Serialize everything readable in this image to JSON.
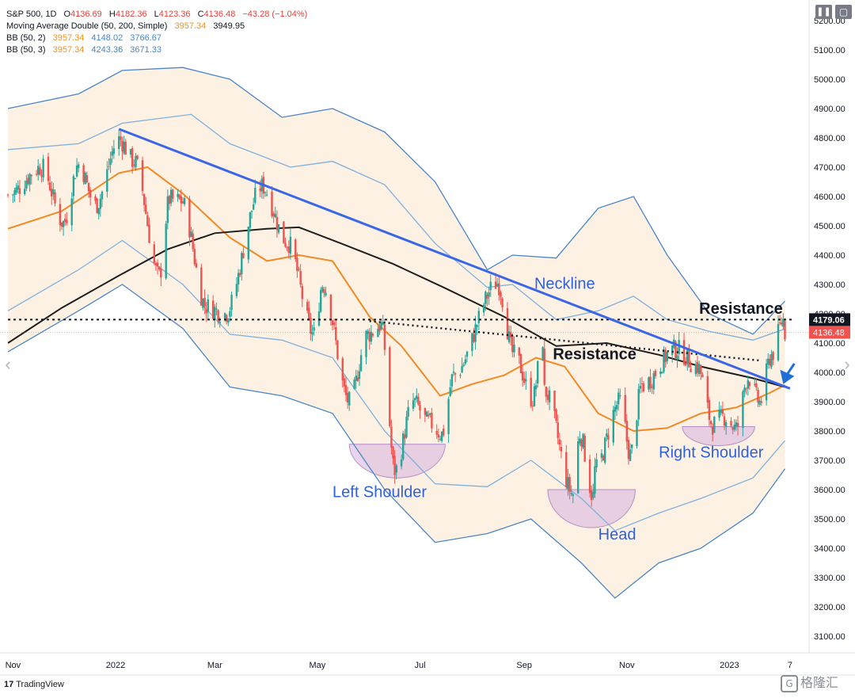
{
  "legend": {
    "ticker": "S&P 500, 1D",
    "o_label": "O",
    "o_value": "4136.69",
    "h_label": "H",
    "h_value": "4182.36",
    "l_label": "L",
    "l_value": "4123.36",
    "c_label": "C",
    "c_value": "4136.48",
    "change": "−43.28 (−1.04%)",
    "ma_label": "Moving Average Double (50, 200, Simple)",
    "ma_fast": "3957.34",
    "ma_slow": "3949.95",
    "bb1_label": "BB (50, 2)",
    "bb1_basis": "3957.34",
    "bb1_upper": "4148.02",
    "bb1_lower": "3766.67",
    "bb2_label": "BB (50, 3)",
    "bb2_basis": "3957.34",
    "bb2_upper": "4243.36",
    "bb2_lower": "3671.33"
  },
  "price_tags": {
    "resistance_tag": "4179.06",
    "last_price_tag": "4136.48"
  },
  "footer": {
    "brand": "TradingView",
    "watermark": "格隆汇"
  },
  "colors": {
    "up": "#26a69a",
    "down": "#ef5350",
    "ma50": "#f08a24",
    "ma200": "#1e1e1e",
    "bb_band": "#4a86c6",
    "band_fill": "#fdf0e0",
    "trend": "#3a66e8",
    "annotation_blue": "#2f62d8",
    "shoulder_fill": "#d9b7e0"
  },
  "chart_data": {
    "type": "candlestick",
    "y_axis": {
      "min": 3050,
      "max": 5220,
      "ticks": [
        3100,
        3200,
        3300,
        3400,
        3500,
        3600,
        3700,
        3800,
        3900,
        4000,
        4100,
        4200,
        4300,
        4400,
        4500,
        4600,
        4700,
        4800,
        4900,
        5000,
        5100,
        5200
      ],
      "tick_labels": [
        "3100.00",
        "3200.00",
        "3300.00",
        "3400.00",
        "3500.00",
        "3600.00",
        "3700.00",
        "3800.00",
        "3900.00",
        "4000.00",
        "4100.00",
        "4200.00",
        "4300.00",
        "4400.00",
        "4500.00",
        "4600.00",
        "4700.00",
        "4800.00",
        "4900.00",
        "5000.00",
        "5100.00",
        "5200.00"
      ]
    },
    "x_axis": {
      "start": "2021-10-29",
      "end": "2023-02-07",
      "ticks": [
        "2021-11-01",
        "2022-01-01",
        "2022-03-01",
        "2022-05-01",
        "2022-07-01",
        "2022-09-01",
        "2022-11-01",
        "2023-01-01",
        "2023-02-06"
      ],
      "tick_labels": [
        "Nov",
        "2022",
        "Mar",
        "May",
        "Jul",
        "Sep",
        "Nov",
        "2023",
        "7"
      ]
    },
    "price_path": [
      [
        "2021-10-29",
        4605
      ],
      [
        "2021-11-18",
        4700
      ],
      [
        "2021-12-01",
        4510
      ],
      [
        "2021-12-10",
        4710
      ],
      [
        "2021-12-20",
        4570
      ],
      [
        "2022-01-03",
        4795
      ],
      [
        "2022-01-12",
        4720
      ],
      [
        "2022-01-27",
        4330
      ],
      [
        "2022-02-02",
        4590
      ],
      [
        "2022-02-09",
        4585
      ],
      [
        "2022-02-24",
        4225
      ],
      [
        "2022-03-07",
        4200
      ],
      [
        "2022-03-29",
        4635
      ],
      [
        "2022-04-13",
        4445
      ],
      [
        "2022-04-29",
        4130
      ],
      [
        "2022-05-04",
        4300
      ],
      [
        "2022-05-20",
        3900
      ],
      [
        "2022-05-31",
        4130
      ],
      [
        "2022-06-08",
        4160
      ],
      [
        "2022-06-16",
        3665
      ],
      [
        "2022-06-27",
        3900
      ],
      [
        "2022-07-06",
        3830
      ],
      [
        "2022-07-14",
        3790
      ],
      [
        "2022-07-21",
        3990
      ],
      [
        "2022-08-16",
        4305
      ],
      [
        "2022-08-26",
        4060
      ],
      [
        "2022-09-06",
        3910
      ],
      [
        "2022-09-12",
        4110
      ],
      [
        "2022-09-13",
        3935
      ],
      [
        "2022-09-30",
        3585
      ],
      [
        "2022-10-04",
        3790
      ],
      [
        "2022-10-12",
        3577
      ],
      [
        "2022-10-13",
        3669
      ],
      [
        "2022-10-28",
        3901
      ],
      [
        "2022-11-03",
        3720
      ],
      [
        "2022-11-10",
        3956
      ],
      [
        "2022-11-30",
        4080
      ],
      [
        "2022-12-13",
        4020
      ],
      [
        "2022-12-22",
        3822
      ],
      [
        "2022-12-29",
        3849
      ],
      [
        "2023-01-05",
        3808
      ],
      [
        "2023-01-12",
        3983
      ],
      [
        "2023-01-19",
        3898
      ],
      [
        "2023-01-26",
        4060
      ],
      [
        "2023-02-02",
        4179
      ],
      [
        "2023-02-03",
        4136
      ]
    ],
    "last_close": 4136.48,
    "moving_averages": [
      {
        "name": "MA 50",
        "points": [
          [
            "2021-10-29",
            4490
          ],
          [
            "2021-11-30",
            4550
          ],
          [
            "2022-01-03",
            4680
          ],
          [
            "2022-01-20",
            4700
          ],
          [
            "2022-02-10",
            4610
          ],
          [
            "2022-03-10",
            4460
          ],
          [
            "2022-04-01",
            4380
          ],
          [
            "2022-04-20",
            4400
          ],
          [
            "2022-05-10",
            4380
          ],
          [
            "2022-06-01",
            4190
          ],
          [
            "2022-06-20",
            4090
          ],
          [
            "2022-07-13",
            3920
          ],
          [
            "2022-08-01",
            3960
          ],
          [
            "2022-08-20",
            3990
          ],
          [
            "2022-09-08",
            4050
          ],
          [
            "2022-09-25",
            4020
          ],
          [
            "2022-10-15",
            3860
          ],
          [
            "2022-11-05",
            3800
          ],
          [
            "2022-11-25",
            3810
          ],
          [
            "2022-12-15",
            3860
          ],
          [
            "2023-01-05",
            3880
          ],
          [
            "2023-01-25",
            3930
          ],
          [
            "2023-02-03",
            3957
          ]
        ]
      },
      {
        "name": "MA 200",
        "points": [
          [
            "2021-10-29",
            4100
          ],
          [
            "2021-11-30",
            4220
          ],
          [
            "2022-01-03",
            4330
          ],
          [
            "2022-02-01",
            4420
          ],
          [
            "2022-03-01",
            4475
          ],
          [
            "2022-04-01",
            4490
          ],
          [
            "2022-04-20",
            4495
          ],
          [
            "2022-05-15",
            4440
          ],
          [
            "2022-06-15",
            4370
          ],
          [
            "2022-07-15",
            4290
          ],
          [
            "2022-08-20",
            4190
          ],
          [
            "2022-09-20",
            4090
          ],
          [
            "2022-10-20",
            4100
          ],
          [
            "2022-11-20",
            4060
          ],
          [
            "2022-12-15",
            4020
          ],
          [
            "2023-01-15",
            3980
          ],
          [
            "2023-02-03",
            3950
          ]
        ]
      }
    ],
    "bollinger_bands": [
      {
        "name": "BB (50, 2) upper",
        "points": [
          [
            "2021-10-29",
            4760
          ],
          [
            "2021-12-10",
            4780
          ],
          [
            "2022-01-05",
            4850
          ],
          [
            "2022-02-15",
            4880
          ],
          [
            "2022-03-10",
            4780
          ],
          [
            "2022-04-15",
            4700
          ],
          [
            "2022-05-10",
            4720
          ],
          [
            "2022-06-10",
            4640
          ],
          [
            "2022-07-10",
            4440
          ],
          [
            "2022-08-10",
            4290
          ],
          [
            "2022-08-25",
            4300
          ],
          [
            "2022-09-20",
            4180
          ],
          [
            "2022-10-15",
            4210
          ],
          [
            "2022-11-05",
            4260
          ],
          [
            "2022-11-25",
            4180
          ],
          [
            "2022-12-20",
            4140
          ],
          [
            "2023-01-15",
            4110
          ],
          [
            "2023-02-03",
            4148
          ]
        ]
      },
      {
        "name": "BB (50, 2) lower",
        "points": [
          [
            "2021-10-29",
            4210
          ],
          [
            "2021-12-10",
            4350
          ],
          [
            "2022-01-05",
            4450
          ],
          [
            "2022-02-10",
            4300
          ],
          [
            "2022-03-10",
            4130
          ],
          [
            "2022-04-10",
            4110
          ],
          [
            "2022-05-10",
            4050
          ],
          [
            "2022-06-10",
            3800
          ],
          [
            "2022-07-10",
            3620
          ],
          [
            "2022-08-10",
            3610
          ],
          [
            "2022-09-05",
            3700
          ],
          [
            "2022-10-05",
            3570
          ],
          [
            "2022-10-25",
            3460
          ],
          [
            "2022-11-20",
            3520
          ],
          [
            "2022-12-15",
            3570
          ],
          [
            "2023-01-15",
            3640
          ],
          [
            "2023-02-03",
            3767
          ]
        ]
      },
      {
        "name": "BB (50, 3) upper",
        "points": [
          [
            "2021-10-29",
            4900
          ],
          [
            "2021-12-10",
            4950
          ],
          [
            "2022-01-05",
            5030
          ],
          [
            "2022-02-10",
            5040
          ],
          [
            "2022-03-10",
            5000
          ],
          [
            "2022-04-10",
            4870
          ],
          [
            "2022-05-10",
            4900
          ],
          [
            "2022-06-10",
            4820
          ],
          [
            "2022-07-10",
            4650
          ],
          [
            "2022-08-10",
            4350
          ],
          [
            "2022-08-25",
            4400
          ],
          [
            "2022-09-20",
            4390
          ],
          [
            "2022-10-15",
            4560
          ],
          [
            "2022-11-05",
            4600
          ],
          [
            "2022-11-25",
            4400
          ],
          [
            "2022-12-20",
            4200
          ],
          [
            "2023-01-15",
            4130
          ],
          [
            "2023-02-03",
            4243
          ]
        ]
      },
      {
        "name": "BB (50, 3) lower",
        "points": [
          [
            "2021-10-29",
            4070
          ],
          [
            "2021-12-10",
            4210
          ],
          [
            "2022-01-05",
            4300
          ],
          [
            "2022-02-10",
            4150
          ],
          [
            "2022-03-10",
            3950
          ],
          [
            "2022-04-10",
            3920
          ],
          [
            "2022-05-10",
            3860
          ],
          [
            "2022-06-10",
            3600
          ],
          [
            "2022-07-10",
            3420
          ],
          [
            "2022-08-10",
            3450
          ],
          [
            "2022-09-05",
            3500
          ],
          [
            "2022-10-05",
            3350
          ],
          [
            "2022-10-25",
            3230
          ],
          [
            "2022-11-20",
            3350
          ],
          [
            "2022-12-15",
            3400
          ],
          [
            "2023-01-15",
            3520
          ],
          [
            "2023-02-03",
            3671
          ]
        ]
      }
    ],
    "trend_lines": [
      {
        "name": "neckline",
        "from": [
          "2022-01-03",
          4830
        ],
        "to": [
          "2023-02-06",
          3945
        ]
      }
    ],
    "dotted_lines": [
      {
        "name": "resistance-level",
        "from": [
          "2021-10-29",
          4180
        ],
        "to": [
          "2023-02-07",
          4180
        ]
      },
      {
        "name": "resistance-diagonal",
        "from": [
          "2022-06-01",
          4175
        ],
        "to": [
          "2023-01-20",
          4040
        ]
      }
    ],
    "shoulders": [
      {
        "name": "left",
        "left": [
          "2022-05-20",
          3755
        ],
        "right": [
          "2022-07-16",
          3755
        ],
        "bottom": 3640
      },
      {
        "name": "head",
        "left": [
          "2022-09-15",
          3600
        ],
        "right": [
          "2022-11-06",
          3600
        ],
        "bottom": 3470
      },
      {
        "name": "right",
        "left": [
          "2022-12-04",
          3815
        ],
        "right": [
          "2023-01-16",
          3815
        ],
        "bottom": 3750
      }
    ],
    "annotations": [
      {
        "text": "Neckline",
        "at": [
          "2022-09-07",
          4285
        ],
        "color": "#2f62d8"
      },
      {
        "text": "Resistance",
        "at": [
          "2022-12-14",
          4200
        ],
        "color": "#131722"
      },
      {
        "text": "Resistance",
        "at": [
          "2022-09-18",
          4045
        ],
        "color": "#131722"
      },
      {
        "text": "Left Shoulder",
        "at": [
          "2022-05-10",
          3575
        ],
        "color": "#2f62d8"
      },
      {
        "text": "Head",
        "at": [
          "2022-10-15",
          3430
        ],
        "color": "#2f62d8"
      },
      {
        "text": "Right Shoulder",
        "at": [
          "2022-11-20",
          3710
        ],
        "color": "#2f62d8"
      }
    ],
    "arrow": {
      "from": [
        "2023-02-02",
        4030
      ],
      "to": [
        "2023-02-02",
        3960
      ]
    },
    "grid": false
  }
}
